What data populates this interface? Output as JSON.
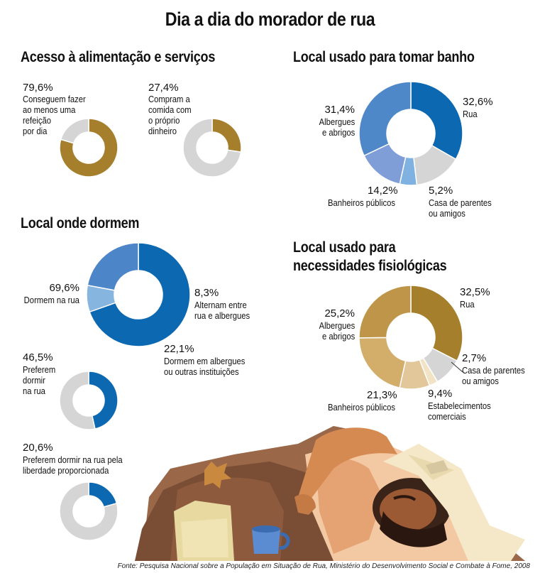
{
  "title": "Dia a dia do morador de rua",
  "sections": {
    "food": "Acesso à alimentação e serviços",
    "bath": "Local usado para tomar banho",
    "sleep": "Local onde dormem",
    "needs_line1": "Local usado para",
    "needs_line2": "necessidades fisiológicas"
  },
  "source": "Fonte: Pesquisa Nacional  sobre a População em Situação de Rua, Ministério do Desenvolvimento Social e Combate à Fome, 2008",
  "colors": {
    "gold": "#a57f2b",
    "blue": "#0b68b1",
    "gray": "#d5d5d5"
  },
  "chart_data": [
    {
      "type": "pie",
      "title": "Acesso à alimentação e serviços",
      "slices": [
        {
          "label": "Conseguem fazer\nao menos uma\nrefeição\npor dia",
          "pct_text": "79,6%",
          "value": 79.6
        },
        {
          "label": "",
          "pct_text": "",
          "value": 20.4
        }
      ]
    },
    {
      "type": "pie",
      "title": "Acesso à alimentação e serviços",
      "slices": [
        {
          "label": "Compram a\ncomida com\no próprio\ndinheiro",
          "pct_text": "27,4%",
          "value": 27.4
        },
        {
          "label": "",
          "pct_text": "",
          "value": 72.6
        }
      ]
    },
    {
      "type": "pie",
      "title": "Local usado para tomar banho",
      "slices": [
        {
          "label": "Rua",
          "pct_text": "32,6%",
          "value": 32.6
        },
        {
          "label": "",
          "pct_text": "",
          "value": 14.6
        },
        {
          "label": "Casa de parentes\nou amigos",
          "pct_text": "5,2%",
          "value": 5.2
        },
        {
          "label": "Banheiros públicos",
          "pct_text": "14,2%",
          "value": 14.2
        },
        {
          "label": "Albergues\ne abrigos",
          "pct_text": "31,4%",
          "value": 31.4
        }
      ]
    },
    {
      "type": "pie",
      "title": "Local onde dormem",
      "slices": [
        {
          "label": "Dormem na rua",
          "pct_text": "69,6%",
          "value": 69.6
        },
        {
          "label": "Alternam entre\nrua e albergues",
          "pct_text": "8,3%",
          "value": 8.3
        },
        {
          "label": "Dormem em albergues\nou outras instituições",
          "pct_text": "22,1%",
          "value": 22.1
        }
      ]
    },
    {
      "type": "pie",
      "slices": [
        {
          "label": "Preferem\ndormir\nna rua",
          "pct_text": "46,5%",
          "value": 46.5
        },
        {
          "label": "",
          "pct_text": "",
          "value": 53.5
        }
      ]
    },
    {
      "type": "pie",
      "slices": [
        {
          "label": "Preferem dormir na rua pela\nliberdade proporcionada",
          "pct_text": "20,6%",
          "value": 20.6
        },
        {
          "label": "",
          "pct_text": "",
          "value": 79.4
        }
      ]
    },
    {
      "type": "pie",
      "title": "Local usado para necessidades fisiológicas",
      "slices": [
        {
          "label": "Rua",
          "pct_text": "32,5%",
          "value": 32.5
        },
        {
          "label": "",
          "pct_text": "",
          "value": 8.9
        },
        {
          "label": "Casa de parentes\nou amigos",
          "pct_text": "2,7%",
          "value": 2.7
        },
        {
          "label": "Estabelecimentos\ncomerciais",
          "pct_text": "9,4%",
          "value": 9.4
        },
        {
          "label": "Banheiros públicos",
          "pct_text": "21,3%",
          "value": 21.3
        },
        {
          "label": "Albergues\ne abrigos",
          "pct_text": "25,2%",
          "value": 25.2
        }
      ]
    }
  ]
}
